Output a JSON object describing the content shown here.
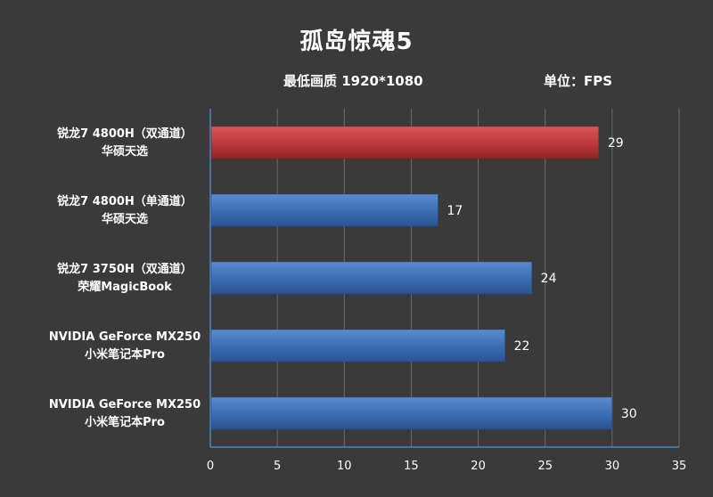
{
  "chart_data": {
    "type": "bar",
    "orientation": "horizontal",
    "title": "孤岛惊魂5",
    "subtitle": "最低画质 1920*1080",
    "unit_label": "单位：FPS",
    "categories": [
      [
        "锐龙7 4800H（双通道）",
        "华硕天选"
      ],
      [
        "锐龙7 4800H（单通道）",
        "华硕天选"
      ],
      [
        "锐龙7 3750H（双通道）",
        "荣耀MagicBook"
      ],
      [
        "NVIDIA GeForce MX250",
        "小米笔记本Pro"
      ],
      [
        "NVIDIA GeForce MX250",
        "小米笔记本Pro"
      ]
    ],
    "values": [
      29,
      17,
      24,
      22,
      30
    ],
    "bar_colors": [
      "#c0393b",
      "#3d6fb5",
      "#3d6fb5",
      "#3d6fb5",
      "#3d6fb5"
    ],
    "xlim": [
      0,
      35
    ],
    "xticks": [
      0,
      5,
      10,
      15,
      20,
      25,
      30,
      35
    ],
    "grid": true,
    "legend": false
  }
}
